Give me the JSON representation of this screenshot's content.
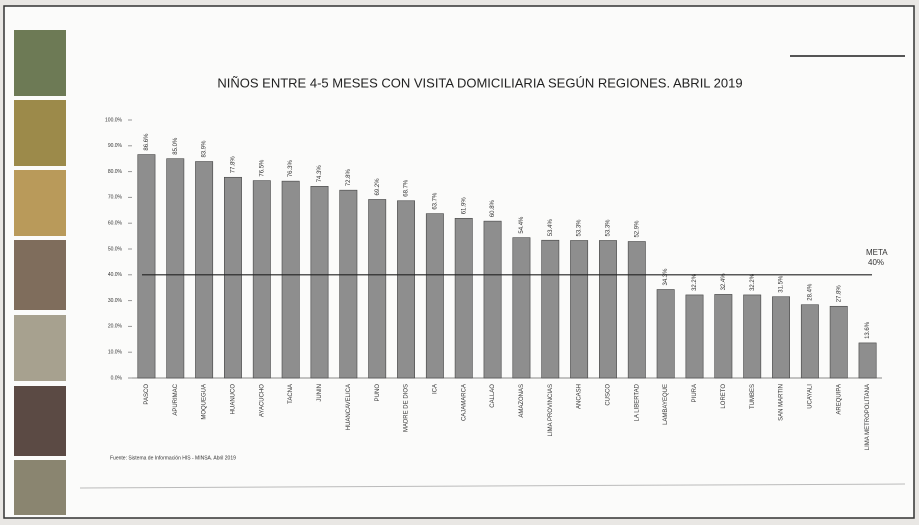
{
  "chart_data": {
    "type": "bar",
    "title": "NIÑOS ENTRE 4-5 MESES CON VISITA DOMICILIARIA SEGÚN REGIONES. ABRIL 2019",
    "categories": [
      "PASCO",
      "APURIMAC",
      "MOQUEGUA",
      "HUANUCO",
      "AYACUCHO",
      "TACNA",
      "JUNIN",
      "HUANCAVELICA",
      "PUNO",
      "MADRE DE DIOS",
      "ICA",
      "CAJAMARCA",
      "CALLAO",
      "AMAZONAS",
      "LIMA PROVINCIAS",
      "ANCASH",
      "CUSCO",
      "LA LIBERTAD",
      "LAMBAYEQUE",
      "PIURA",
      "LORETO",
      "TUMBES",
      "SAN MARTIN",
      "UCAYALI",
      "AREQUIPA",
      "LIMA METROPOLITANA"
    ],
    "values": [
      86.6,
      85.0,
      83.9,
      77.8,
      76.5,
      76.3,
      74.3,
      72.8,
      69.2,
      68.7,
      63.7,
      61.9,
      60.8,
      54.4,
      53.4,
      53.3,
      53.3,
      52.9,
      34.3,
      32.2,
      32.4,
      32.2,
      31.5,
      28.4,
      27.8,
      13.6
    ],
    "value_labels": [
      "86.6%",
      "85.0%",
      "83.9%",
      "77.8%",
      "76.5%",
      "76.3%",
      "74.3%",
      "72.8%",
      "69.2%",
      "68.7%",
      "63.7%",
      "61.9%",
      "60.8%",
      "54.4%",
      "53.4%",
      "53.3%",
      "53.3%",
      "52.9%",
      "34.3%",
      "32.2%",
      "32.4%",
      "32.2%",
      "31.5%",
      "28.4%",
      "27.8%",
      "13.6%"
    ],
    "color": "#8e8e8e",
    "ylim": [
      0,
      100
    ],
    "yticks": [
      {
        "value": 0,
        "label": "0.0%"
      },
      {
        "value": 10,
        "label": "10.0%"
      },
      {
        "value": 20,
        "label": "20.0%"
      },
      {
        "value": 30,
        "label": "30.0%"
      },
      {
        "value": 40,
        "label": "40.0%"
      },
      {
        "value": 50,
        "label": "50.0%"
      },
      {
        "value": 60,
        "label": "60.0%"
      },
      {
        "value": 70,
        "label": "70.0%"
      },
      {
        "value": 80,
        "label": "80.0%"
      },
      {
        "value": 90,
        "label": "90.0%"
      },
      {
        "value": 100,
        "label": "100.0%"
      }
    ],
    "meta": {
      "label": "META",
      "value": 40,
      "value_label": "40%"
    },
    "source": "Fuente: Sistema de Información HIS - MINSA. Abril 2019"
  }
}
